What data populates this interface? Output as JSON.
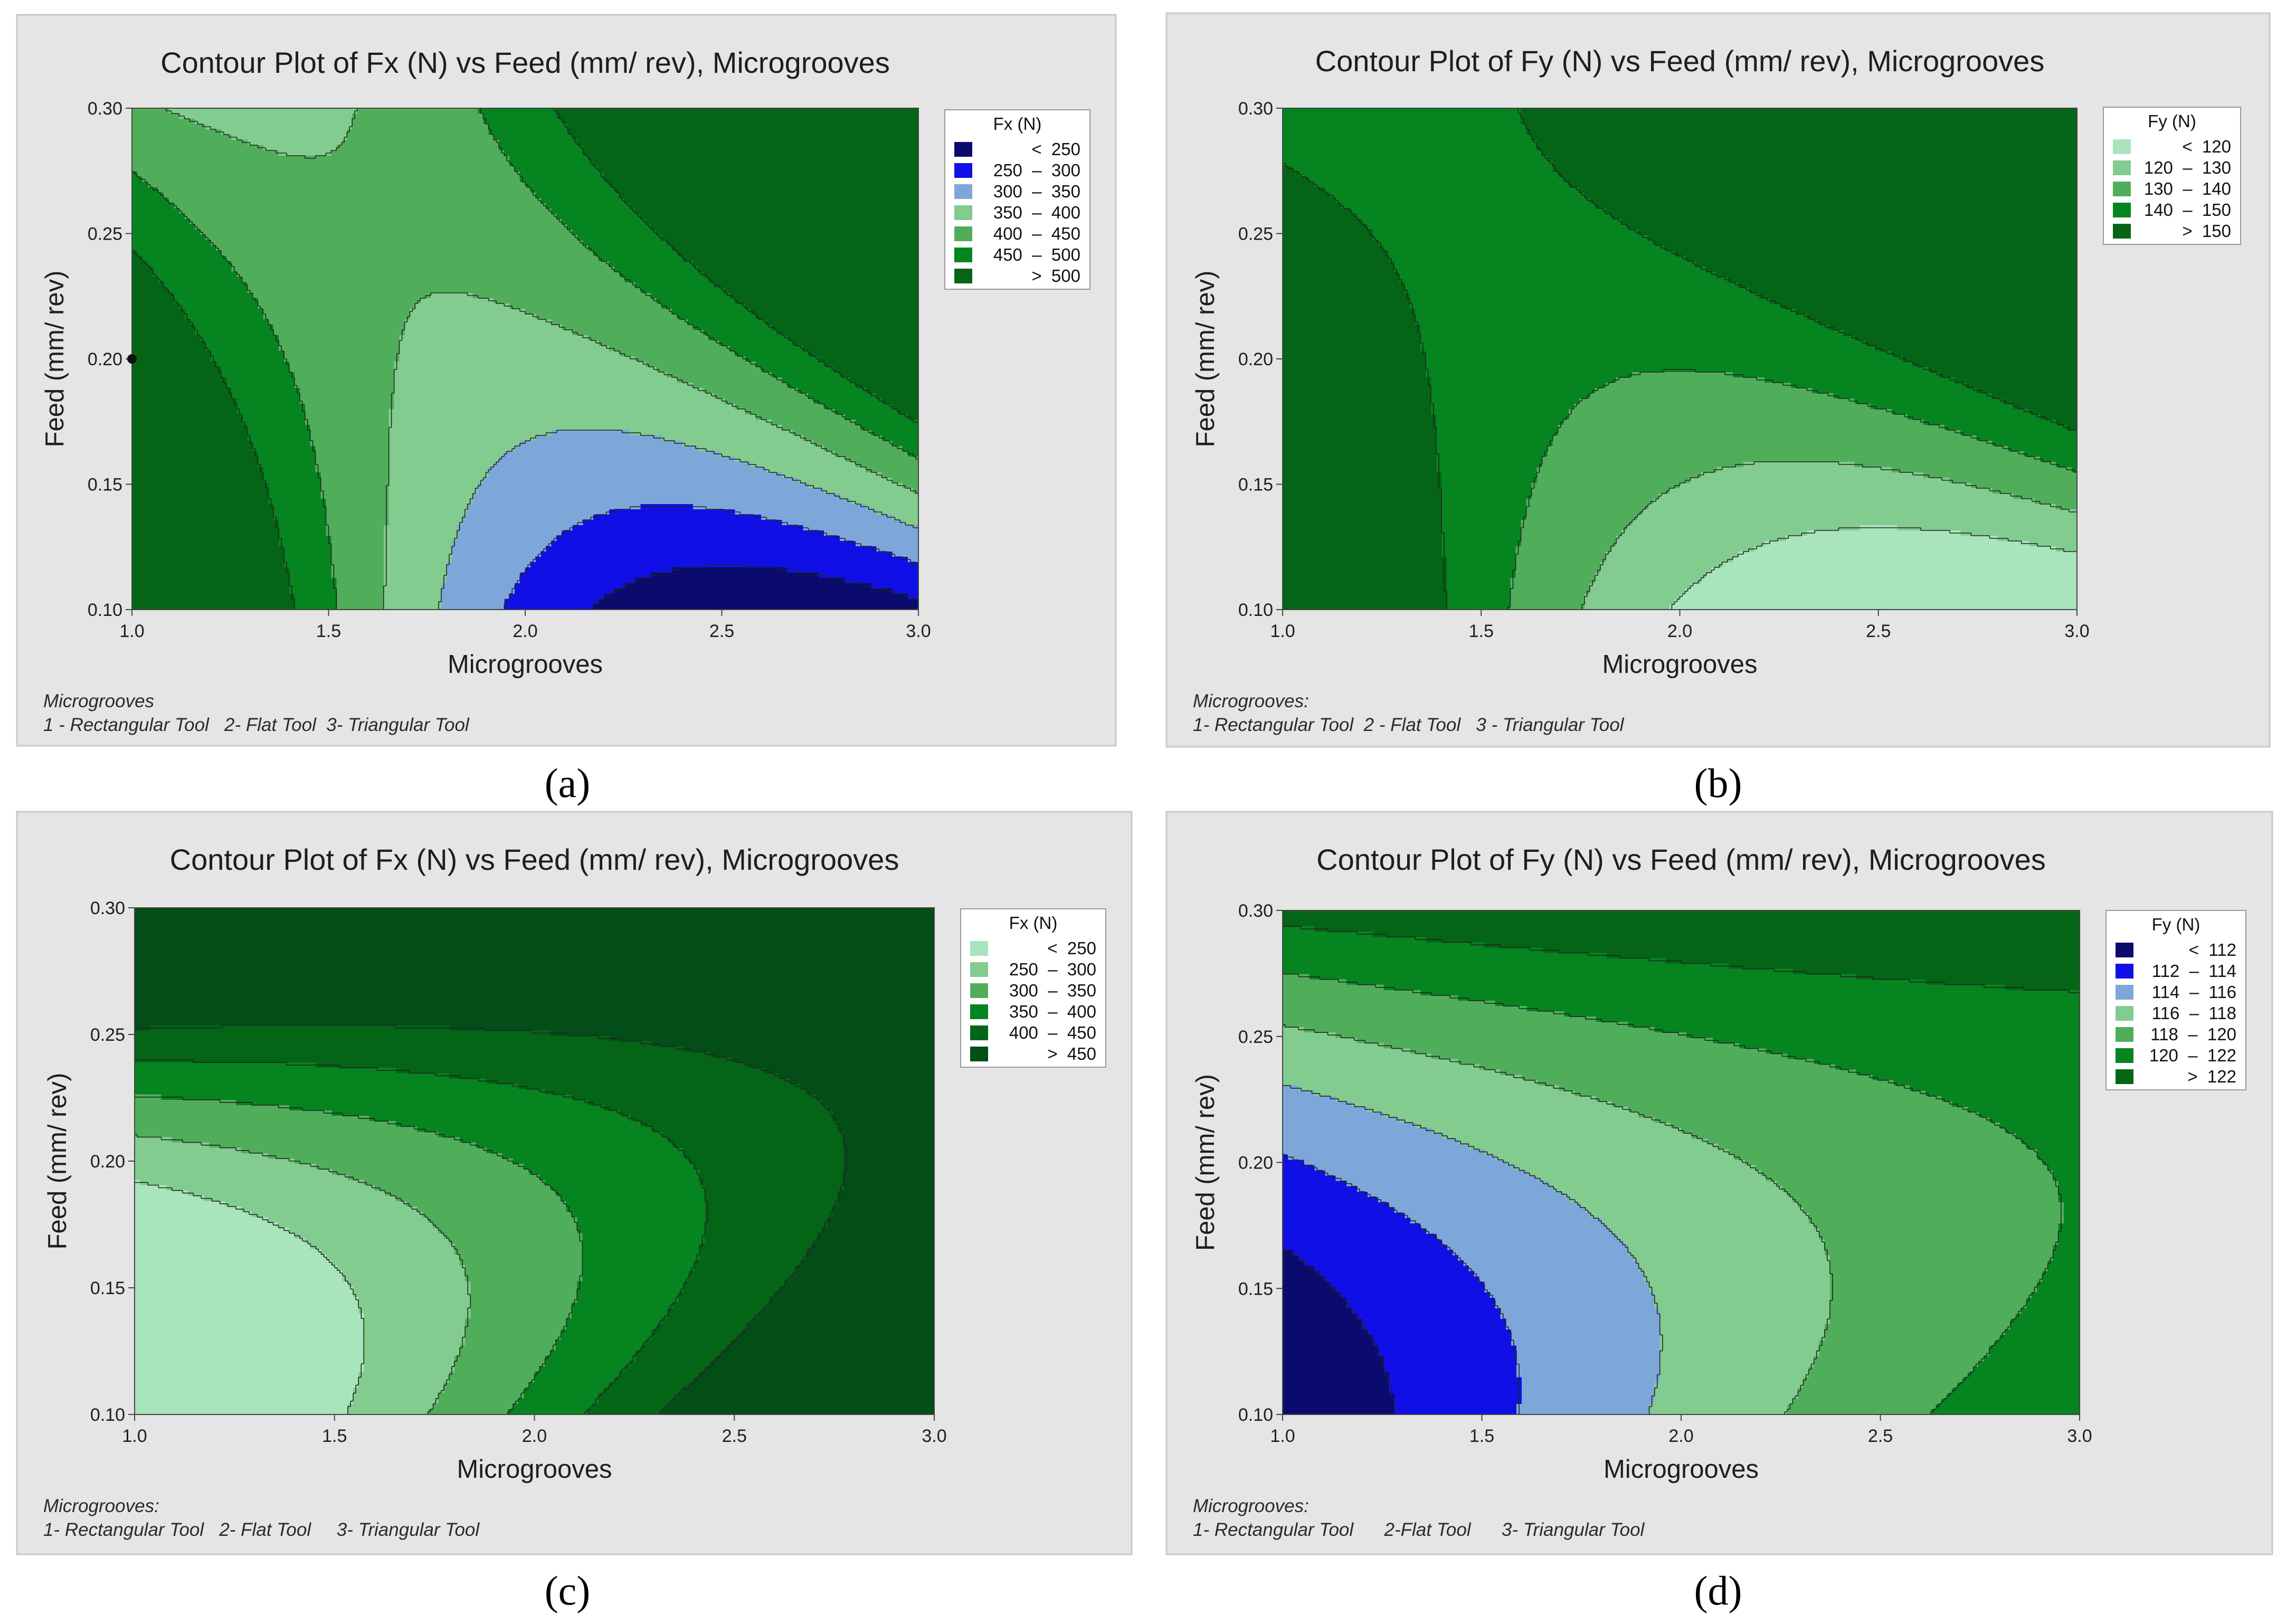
{
  "chart_data": [
    {
      "type": "contour",
      "panel_label": "(a)",
      "title": "Contour Plot of Fx (N) vs Feed (mm/ rev), Microgrooves",
      "xlabel": "Microgrooves",
      "ylabel": "Feed (mm/ rev)",
      "xlim": [
        1.0,
        3.0
      ],
      "ylim": [
        0.1,
        0.3
      ],
      "x_ticks": [
        "1.0",
        "1.5",
        "2.0",
        "2.5",
        "3.0"
      ],
      "y_ticks": [
        "0.10",
        "0.15",
        "0.20",
        "0.25",
        "0.30"
      ],
      "legend_title": "Fx (N)",
      "bands": [
        {
          "range": "<  250",
          "lo": null,
          "hi": 250,
          "color": "#0b0b6e"
        },
        {
          "range": "250  –  300",
          "lo": 250,
          "hi": 300,
          "color": "#1010e6"
        },
        {
          "range": "300  –  350",
          "lo": 300,
          "hi": 350,
          "color": "#7da7d9"
        },
        {
          "range": "350  –  400",
          "lo": 350,
          "hi": 400,
          "color": "#82cc90"
        },
        {
          "range": "400  –  450",
          "lo": 400,
          "hi": 450,
          "color": "#50ae5a"
        },
        {
          "range": "450  –  500",
          "lo": 450,
          "hi": 500,
          "color": "#068420"
        },
        {
          "range": ">  500",
          "lo": 500,
          "hi": null,
          "color": "#036515"
        }
      ],
      "fit": {
        "a": 383,
        "bx": 30,
        "by": 1100,
        "cx": 200,
        "dxy": 2600,
        "x0": 2.05,
        "y0": 0.2
      },
      "marker": {
        "x": 1.0,
        "y": 0.2
      },
      "note_lines": [
        "Microgrooves",
        "1 - Rectangular Tool   2- Flat Tool  3- Triangular Tool"
      ]
    },
    {
      "type": "contour",
      "panel_label": "(b)",
      "title": "Contour Plot of Fy (N) vs Feed (mm/ rev), Microgrooves",
      "xlabel": "Microgrooves",
      "ylabel": "Feed (mm/ rev)",
      "xlim": [
        1.0,
        3.0
      ],
      "ylim": [
        0.1,
        0.3
      ],
      "x_ticks": [
        "1.0",
        "1.5",
        "2.0",
        "2.5",
        "3.0"
      ],
      "y_ticks": [
        "0.10",
        "0.15",
        "0.20",
        "0.25",
        "0.30"
      ],
      "legend_title": "Fy (N)",
      "bands": [
        {
          "range": "<  120",
          "lo": null,
          "hi": 120,
          "color": "#a8e4bc"
        },
        {
          "range": "120  –  130",
          "lo": 120,
          "hi": 130,
          "color": "#82cc90"
        },
        {
          "range": "130  –  140",
          "lo": 130,
          "hi": 140,
          "color": "#50ae5a"
        },
        {
          "range": "140  –  150",
          "lo": 140,
          "hi": 150,
          "color": "#068420"
        },
        {
          "range": ">  150",
          "lo": 150,
          "hi": null,
          "color": "#036515"
        }
      ],
      "fit": {
        "a": 141,
        "bx": 2,
        "by": 220,
        "cx": 25,
        "dxy": 400,
        "x0": 2.0,
        "y0": 0.2
      },
      "note_lines": [
        "Microgrooves:",
        "1- Rectangular Tool  2 - Flat Tool   3 - Triangular Tool"
      ]
    },
    {
      "type": "contour",
      "panel_label": "(c)",
      "title": "Contour Plot of Fx (N) vs Feed (mm/ rev), Microgrooves",
      "xlabel": "Microgrooves",
      "ylabel": "Feed (mm/ rev)",
      "xlim": [
        1.0,
        3.0
      ],
      "ylim": [
        0.1,
        0.3
      ],
      "x_ticks": [
        "1.0",
        "1.5",
        "2.0",
        "2.5",
        "3.0"
      ],
      "y_ticks": [
        "0.10",
        "0.15",
        "0.20",
        "0.25",
        "0.30"
      ],
      "legend_title": "Fx (N)",
      "bands": [
        {
          "range": "<  250",
          "lo": null,
          "hi": 250,
          "color": "#a8e4bc"
        },
        {
          "range": "250  –  300",
          "lo": 250,
          "hi": 300,
          "color": "#82cc90"
        },
        {
          "range": "300  –  350",
          "lo": 300,
          "hi": 350,
          "color": "#50ae5a"
        },
        {
          "range": "350  –  400",
          "lo": 350,
          "hi": 400,
          "color": "#068420"
        },
        {
          "range": "400  –  450",
          "lo": 400,
          "hi": 450,
          "color": "#036515"
        },
        {
          "range": ">  450",
          "lo": 450,
          "hi": null,
          "color": "#034d18"
        }
      ],
      "fit": {
        "a": 356,
        "bx": 105,
        "by": 1180,
        "cx": 20,
        "dxy": -1550,
        "dyy": 13000,
        "x0": 2.0,
        "y0": 0.2
      },
      "note_lines": [
        "Microgrooves:",
        "1- Rectangular Tool   2- Flat Tool     3- Triangular Tool"
      ]
    },
    {
      "type": "contour",
      "panel_label": "(d)",
      "title": "Contour Plot of Fy (N) vs Feed (mm/ rev), Microgrooves",
      "xlabel": "Microgrooves",
      "ylabel": "Feed (mm/ rev)",
      "xlim": [
        1.0,
        3.0
      ],
      "ylim": [
        0.1,
        0.3
      ],
      "x_ticks": [
        "1.0",
        "1.5",
        "2.0",
        "2.5",
        "3.0"
      ],
      "y_ticks": [
        "0.10",
        "0.15",
        "0.20",
        "0.25",
        "0.30"
      ],
      "legend_title": "Fy (N)",
      "bands": [
        {
          "range": "<  112",
          "lo": null,
          "hi": 112,
          "color": "#0b0b6e"
        },
        {
          "range": "112  –  114",
          "lo": 112,
          "hi": 114,
          "color": "#1010e6"
        },
        {
          "range": "114  –  116",
          "lo": 114,
          "hi": 116,
          "color": "#7da7d9"
        },
        {
          "range": "116  –  118",
          "lo": 116,
          "hi": 118,
          "color": "#82cc90"
        },
        {
          "range": "118  –  120",
          "lo": 118,
          "hi": 120,
          "color": "#50ae5a"
        },
        {
          "range": "120  –  122",
          "lo": 120,
          "hi": 122,
          "color": "#068420"
        },
        {
          "range": ">  122",
          "lo": 122,
          "hi": null,
          "color": "#036515"
        }
      ],
      "fit": {
        "a": 117.5,
        "bx": 3.2,
        "by": 36,
        "cx": -0.5,
        "dxy": -27,
        "dyy": 260,
        "x0": 2.0,
        "y0": 0.2
      },
      "note_lines": [
        "Microgrooves:",
        "1- Rectangular Tool      2-Flat Tool      3- Triangular Tool"
      ]
    }
  ]
}
